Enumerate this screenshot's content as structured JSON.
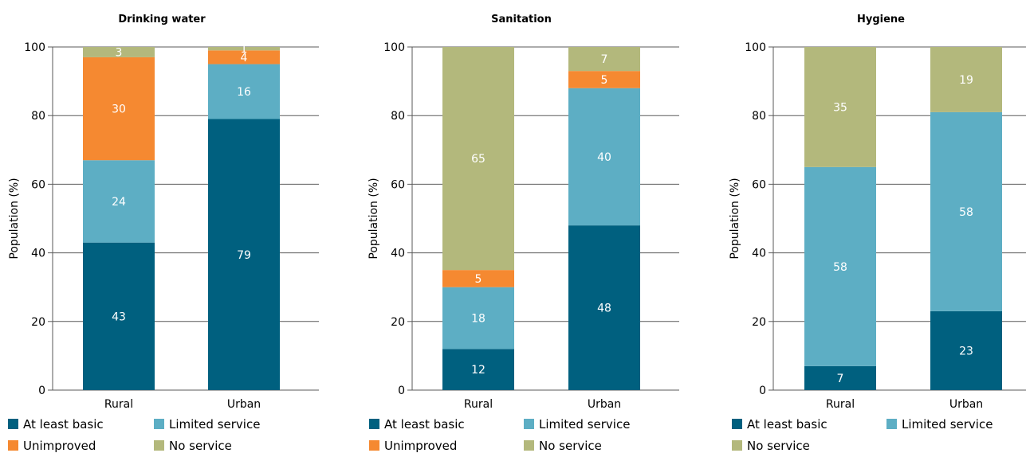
{
  "colors": {
    "At least basic": "#00607f",
    "Limited service": "#5daec4",
    "Unimproved": "#f58931",
    "No service": "#b3b87c"
  },
  "chart_data": [
    {
      "type": "bar",
      "stacked": true,
      "title": "Drinking water",
      "ylabel": "Population (%)",
      "ylim": [
        0,
        100
      ],
      "yticks": [
        0,
        20,
        40,
        60,
        80,
        100
      ],
      "categories": [
        "Rural",
        "Urban"
      ],
      "series": [
        {
          "name": "At least basic",
          "values": [
            43,
            79
          ]
        },
        {
          "name": "Limited service",
          "values": [
            24,
            16
          ]
        },
        {
          "name": "Unimproved",
          "values": [
            30,
            4
          ]
        },
        {
          "name": "No service",
          "values": [
            3,
            1
          ]
        }
      ],
      "legend": [
        "At least basic",
        "Limited service",
        "Unimproved",
        "No service"
      ],
      "legend_position": "bottom",
      "grid": true
    },
    {
      "type": "bar",
      "stacked": true,
      "title": "Sanitation",
      "ylabel": "Population (%)",
      "ylim": [
        0,
        100
      ],
      "yticks": [
        0,
        20,
        40,
        60,
        80,
        100
      ],
      "categories": [
        "Rural",
        "Urban"
      ],
      "series": [
        {
          "name": "At least basic",
          "values": [
            12,
            48
          ]
        },
        {
          "name": "Limited service",
          "values": [
            18,
            40
          ]
        },
        {
          "name": "Unimproved",
          "values": [
            5,
            5
          ]
        },
        {
          "name": "No service",
          "values": [
            65,
            7
          ]
        }
      ],
      "legend": [
        "At least basic",
        "Limited service",
        "Unimproved",
        "No service"
      ],
      "legend_position": "bottom",
      "grid": true
    },
    {
      "type": "bar",
      "stacked": true,
      "title": "Hygiene",
      "ylabel": "Population (%)",
      "ylim": [
        0,
        100
      ],
      "yticks": [
        0,
        20,
        40,
        60,
        80,
        100
      ],
      "categories": [
        "Rural",
        "Urban"
      ],
      "series": [
        {
          "name": "At least basic",
          "values": [
            7,
            23
          ]
        },
        {
          "name": "Limited service",
          "values": [
            58,
            58
          ]
        },
        {
          "name": "No service",
          "values": [
            35,
            19
          ]
        }
      ],
      "legend": [
        "At least basic",
        "Limited service",
        "No service"
      ],
      "legend_position": "bottom",
      "grid": true
    }
  ]
}
